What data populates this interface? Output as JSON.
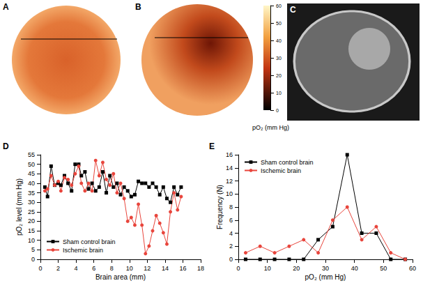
{
  "figure": {
    "panels": [
      {
        "label": "A"
      },
      {
        "label": "B"
      },
      {
        "label": "C"
      }
    ],
    "colorbar": {
      "label": "pO₂ (mm Hg)",
      "range": [
        0,
        60
      ],
      "ticks": [
        0,
        10,
        20,
        30,
        40,
        50,
        60
      ]
    }
  },
  "chart_data": [
    {
      "panel_label": "D",
      "type": "line",
      "xlabel": "Brain area (mm)",
      "ylabel": "pO₂ level (mm Hg)",
      "xlim": [
        0,
        18
      ],
      "xticks": [
        0,
        2,
        4,
        6,
        8,
        10,
        12,
        14,
        16,
        18
      ],
      "ylim": [
        0,
        55
      ],
      "yticks": [
        0,
        5,
        10,
        15,
        20,
        25,
        30,
        35,
        40,
        45,
        50,
        55
      ],
      "grid": false,
      "legend": "lower left",
      "x": [
        0.5,
        0.8,
        1.2,
        1.6,
        2,
        2.3,
        2.7,
        3.1,
        3.5,
        3.9,
        4.3,
        4.6,
        5,
        5.4,
        5.8,
        6.2,
        6.6,
        7,
        7.4,
        7.8,
        8.2,
        8.6,
        9,
        9.4,
        9.8,
        10.2,
        10.6,
        11,
        11.4,
        11.8,
        12.2,
        12.6,
        13,
        13.4,
        13.8,
        14.2,
        14.6,
        15,
        15.4,
        15.8
      ],
      "series": [
        {
          "name": "Sham control brain",
          "color": "#000000",
          "marker": "square",
          "values": [
            38,
            33,
            49,
            39,
            40,
            39,
            44,
            40,
            36,
            50,
            50,
            44,
            46,
            37,
            40,
            36,
            38,
            46,
            35,
            44,
            38,
            40,
            34,
            38,
            36,
            33,
            34,
            41,
            40,
            40,
            38,
            40,
            38,
            34,
            38,
            32,
            30,
            38,
            34,
            38
          ]
        },
        {
          "name": "Ischemic brain",
          "color": "#e8453c",
          "marker": "circle",
          "values": [
            36,
            37,
            44,
            39,
            41,
            36,
            43,
            42,
            39,
            45,
            49,
            40,
            36,
            40,
            36,
            52,
            44,
            51,
            42,
            39,
            45,
            35,
            40,
            32,
            20,
            22,
            18,
            29,
            18,
            3,
            7,
            15,
            23,
            19,
            14,
            8,
            25,
            35,
            26,
            33
          ]
        }
      ]
    },
    {
      "panel_label": "E",
      "type": "line",
      "xlabel": "pO₂ (mm Hg)",
      "ylabel": "Frequency (N)",
      "xlim": [
        0,
        60
      ],
      "xticks": [
        0,
        10,
        20,
        30,
        40,
        50,
        60
      ],
      "ylim": [
        0,
        16
      ],
      "yticks": [
        0,
        2,
        4,
        6,
        8,
        10,
        12,
        14,
        16
      ],
      "grid": false,
      "legend": "upper left",
      "x": [
        2.5,
        7.5,
        12.5,
        17.5,
        22.5,
        27.5,
        32.5,
        37.5,
        42.5,
        47.5,
        52.5,
        57.5
      ],
      "series": [
        {
          "name": "Sham control brain",
          "color": "#000000",
          "marker": "square",
          "values": [
            0,
            0,
            0,
            0,
            0,
            3,
            5,
            16,
            4,
            4,
            0,
            0
          ]
        },
        {
          "name": "Ischemic brain",
          "color": "#e8453c",
          "marker": "circle",
          "values": [
            1,
            2,
            1,
            2,
            3,
            1,
            6,
            8,
            3,
            5,
            1,
            0
          ]
        }
      ]
    }
  ]
}
